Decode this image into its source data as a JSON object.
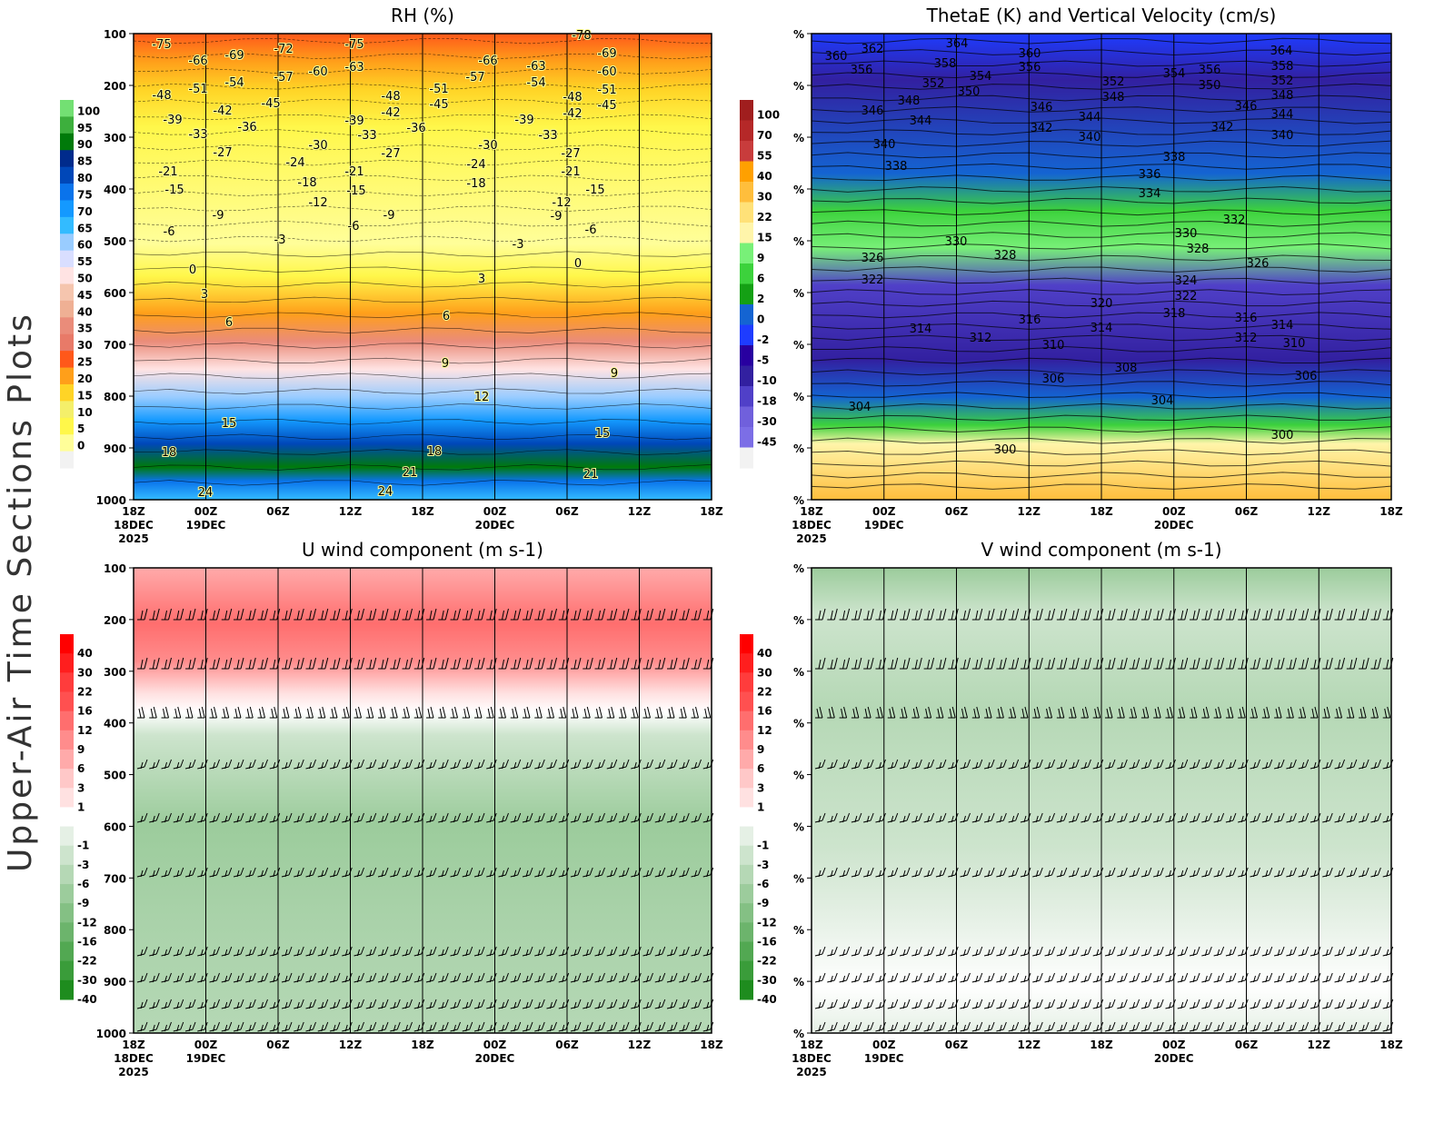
{
  "side_title": "Upper-Air Time Sections Plots",
  "chart_data": [
    {
      "type": "heatmap",
      "title": "RH (%)",
      "y_ticks": [
        "100",
        "200",
        "300",
        "400",
        "500",
        "600",
        "700",
        "800",
        "900",
        "1000"
      ],
      "x_ticks": [
        "18Z|18DEC|2025",
        "00Z|19DEC",
        "06Z",
        "12Z",
        "18Z",
        "00Z|20DEC",
        "06Z",
        "12Z",
        "18Z"
      ],
      "y_axis": "pressure (hPa), 100 at top to 1000 at bottom",
      "colorbar": {
        "labels": [
          "100",
          "95",
          "90",
          "85",
          "80",
          "75",
          "70",
          "65",
          "60",
          "55",
          "50",
          "45",
          "40",
          "35",
          "30",
          "25",
          "20",
          "15",
          "10",
          "5",
          "0"
        ],
        "colors": [
          "#73e073",
          "#3daf3d",
          "#007a0a",
          "#002b8c",
          "#0047b8",
          "#0a73eb",
          "#1499ff",
          "#33bbff",
          "#99ccff",
          "#d9deff",
          "#ffe3e3",
          "#f5c5ae",
          "#efb094",
          "#ea8c7a",
          "#e87a68",
          "#ff581a",
          "#ff9f1a",
          "#ffd426",
          "#f4ef6a",
          "#fff74a",
          "#fffe99",
          "#f2f2f2"
        ]
      },
      "contour_labels": [
        "-75",
        "-66",
        "-69",
        "-72",
        "-75",
        "-63",
        "-60",
        "-57",
        "-54",
        "-51",
        "-48",
        "-45",
        "-42",
        "-39",
        "-36",
        "-33",
        "-30",
        "-27",
        "-24",
        "-21",
        "-18",
        "-15",
        "-12",
        "-9",
        "-6",
        "-3",
        "0",
        "3",
        "6",
        "-48",
        "-42",
        "-39",
        "-33",
        "-27",
        "-21",
        "-15",
        "-6",
        "-9",
        "-51",
        "-45",
        "-36",
        "-66",
        "-57",
        "-63",
        "-54",
        "-60",
        "-69",
        "-48",
        "-42",
        "-45",
        "-51",
        "-39",
        "-33",
        "-30",
        "-24",
        "-18",
        "-27",
        "-21",
        "-12",
        "-9",
        "-15",
        "-6",
        "-3",
        "0",
        "3",
        "6",
        "9",
        "9",
        "12",
        "15",
        "15",
        "18",
        "18",
        "21",
        "21",
        "24",
        "24",
        "-78"
      ]
    },
    {
      "type": "heatmap",
      "title": "ThetaE (K) and Vertical Velocity (cm/s)",
      "y_ticks": [
        "%",
        "%",
        "%",
        "%",
        "%",
        "%",
        "%",
        "%",
        "%",
        "%"
      ],
      "x_ticks": [
        "18Z|18DEC|2025",
        "00Z|19DEC",
        "06Z",
        "12Z",
        "18Z",
        "00Z|20DEC",
        "06Z",
        "12Z",
        "18Z"
      ],
      "colorbar": {
        "labels": [
          "100",
          "70",
          "55",
          "40",
          "30",
          "22",
          "15",
          "9",
          "6",
          "2",
          "0",
          "-2",
          "-5",
          "-10",
          "-18",
          "-30",
          "-45"
        ],
        "colors": [
          "#a01e1e",
          "#b52828",
          "#c83c3c",
          "#ffa000",
          "#ffbe3c",
          "#ffe178",
          "#fff5aa",
          "#78f078",
          "#3cd23c",
          "#14a014",
          "#1464d2",
          "#1e3cff",
          "#2800a0",
          "#3220a0",
          "#5040c8",
          "#7060dc",
          "#7c6ee6",
          "#f2f2f2"
        ]
      },
      "contour_labels": [
        "360",
        "362",
        "356",
        "364",
        "358",
        "354",
        "352",
        "350",
        "348",
        "346",
        "344",
        "340",
        "338",
        "360",
        "356",
        "346",
        "342",
        "344",
        "340",
        "352",
        "348",
        "354",
        "356",
        "350",
        "364",
        "358",
        "352",
        "348",
        "346",
        "344",
        "342",
        "340",
        "338",
        "336",
        "334",
        "332",
        "330",
        "328",
        "326",
        "330",
        "328",
        "326",
        "322",
        "324",
        "322",
        "318",
        "320",
        "316",
        "314",
        "312",
        "310",
        "314",
        "316",
        "314",
        "312",
        "310",
        "308",
        "306",
        "306",
        "304",
        "304",
        "300",
        "300"
      ]
    },
    {
      "type": "heatmap",
      "title": "U wind component (m s-1)",
      "y_ticks": [
        "100",
        "200",
        "300",
        "400",
        "500",
        "600",
        "700",
        "800",
        "900",
        "1000"
      ],
      "x_ticks": [
        "18Z|18DEC|2025",
        "00Z|19DEC",
        "06Z",
        "12Z",
        "18Z",
        "00Z|20DEC",
        "06Z",
        "12Z",
        "18Z"
      ],
      "colorbar": {
        "labels": [
          "40",
          "30",
          "22",
          "16",
          "12",
          "9",
          "6",
          "3",
          "1",
          "-1",
          "-3",
          "-6",
          "-9",
          "-12",
          "-16",
          "-22",
          "-30",
          "-40"
        ],
        "colors": [
          "#ff0000",
          "#ff1e1e",
          "#ff3c3c",
          "#ff5050",
          "#ff6e6e",
          "#ff8c8c",
          "#ffaaaa",
          "#ffc8c8",
          "#ffe1e1",
          "#ffffff",
          "#e5f0e5",
          "#cde4cd",
          "#b5d8b5",
          "#9ccc9c",
          "#84c084",
          "#6cb46c",
          "#52a852",
          "#3a9c3a",
          "#1e8c1e"
        ]
      },
      "wind_barb_levels": [
        "200",
        "300",
        "400",
        "500",
        "600",
        "700",
        "850",
        "900",
        "950",
        "1000"
      ]
    },
    {
      "type": "heatmap",
      "title": "V wind component (m s-1)",
      "y_ticks": [
        "%",
        "%",
        "%",
        "%",
        "%",
        "%",
        "%",
        "%",
        "%",
        "%"
      ],
      "x_ticks": [
        "18Z|18DEC|2025",
        "00Z|19DEC",
        "06Z",
        "12Z",
        "18Z",
        "00Z|20DEC",
        "06Z",
        "12Z",
        "18Z"
      ],
      "colorbar": {
        "labels": [
          "40",
          "30",
          "22",
          "16",
          "12",
          "9",
          "6",
          "3",
          "1",
          "-1",
          "-3",
          "-6",
          "-9",
          "-12",
          "-16",
          "-22",
          "-30",
          "-40"
        ],
        "colors": [
          "#ff0000",
          "#ff1e1e",
          "#ff3c3c",
          "#ff5050",
          "#ff6e6e",
          "#ff8c8c",
          "#ffaaaa",
          "#ffc8c8",
          "#ffe1e1",
          "#ffffff",
          "#e5f0e5",
          "#cde4cd",
          "#b5d8b5",
          "#9ccc9c",
          "#84c084",
          "#6cb46c",
          "#52a852",
          "#3a9c3a",
          "#1e8c1e"
        ]
      },
      "wind_barb_levels": [
        "200",
        "300",
        "400",
        "500",
        "600",
        "700",
        "850",
        "900",
        "950",
        "1000"
      ]
    }
  ]
}
